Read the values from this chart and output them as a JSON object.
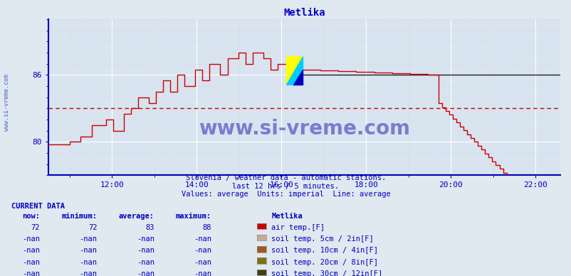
{
  "title": "Metlika",
  "title_color": "#0000cc",
  "bg_color": "#e0e8f0",
  "plot_bg_color": "#d8e4f0",
  "grid_color": "#ffffff",
  "minor_grid_color": "#e8c8c8",
  "axis_color": "#0000bb",
  "watermark_text": "www.si-vreme.com",
  "subtitle_lines": [
    "Slovenia / weather data - automatic stations.",
    "last 12 hrs / 5 minutes.",
    "Values: average  Units: imperial  Line: average"
  ],
  "ylim": [
    77.0,
    91.0
  ],
  "yticks": [
    80,
    86
  ],
  "xstart": 10.5,
  "xend": 22.58,
  "xticks": [
    12,
    14,
    16,
    18,
    20,
    22
  ],
  "xtick_labels": [
    "12:00",
    "14:00",
    "16:00",
    "18:00",
    "20:00",
    "22:00"
  ],
  "average_value": 83,
  "line_color": "#cc0000",
  "avg_line_color": "#cc0000",
  "black_line_value": 86.0,
  "current_data_label": "CURRENT DATA",
  "col_headers": [
    "now:",
    "minimum:",
    "average:",
    "maximum:",
    "Metlika"
  ],
  "rows": [
    {
      "now": "72",
      "min": "72",
      "avg": "83",
      "max": "88",
      "label": "air temp.[F]",
      "color": "#cc0000"
    },
    {
      "now": "-nan",
      "min": "-nan",
      "avg": "-nan",
      "max": "-nan",
      "label": "soil temp. 5cm / 2in[F]",
      "color": "#c8a898"
    },
    {
      "now": "-nan",
      "min": "-nan",
      "avg": "-nan",
      "max": "-nan",
      "label": "soil temp. 10cm / 4in[F]",
      "color": "#a05820"
    },
    {
      "now": "-nan",
      "min": "-nan",
      "avg": "-nan",
      "max": "-nan",
      "label": "soil temp. 20cm / 8in[F]",
      "color": "#807010"
    },
    {
      "now": "-nan",
      "min": "-nan",
      "avg": "-nan",
      "max": "-nan",
      "label": "soil temp. 30cm / 12in[F]",
      "color": "#404010"
    }
  ],
  "watermark_color": "#1a1aaa",
  "left_text": "www.si-vreme.com",
  "left_text_color": "#3355cc",
  "logo_yellow": "#ffff00",
  "logo_cyan": "#00ccff",
  "logo_blue": "#0000bb"
}
